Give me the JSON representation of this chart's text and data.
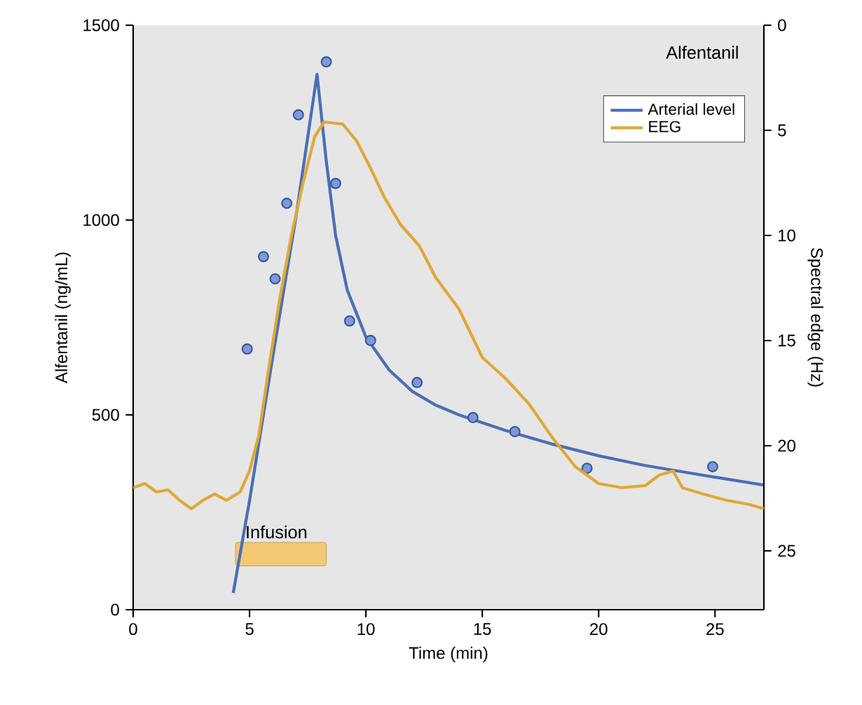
{
  "chart_data": {
    "type": "line",
    "title": "Alfentanil",
    "xlabel": "Time (min)",
    "ylabel": "Alfentanil (ng/mL)",
    "y2label": "Spectral edge (Hz)",
    "xlim": [
      0,
      27.1
    ],
    "xticks": [
      0,
      5,
      10,
      15,
      20,
      25
    ],
    "ylim": [
      0,
      1500
    ],
    "yticks": [
      0,
      500,
      1000,
      1500
    ],
    "y2lim": [
      27.8,
      0
    ],
    "y2ticks": [
      0,
      5,
      10,
      15,
      20,
      25
    ],
    "legend": "top right",
    "series": [
      {
        "name": "Arterial level",
        "type": "line",
        "color": "#4a6fb5",
        "x": [
          4.3,
          5,
          6,
          7,
          7.9,
          8.3,
          8.7,
          9.2,
          10,
          11,
          12,
          13,
          14,
          16,
          18,
          20,
          22,
          25,
          27.1
        ],
        "values": [
          43,
          280,
          650,
          1010,
          1374,
          1150,
          960,
          820,
          700,
          615,
          560,
          525,
          500,
          460,
          425,
          395,
          370,
          340,
          320
        ]
      },
      {
        "type": "scatter",
        "color": "#7b98e0",
        "x": [
          4.9,
          5.6,
          6.1,
          6.6,
          7.1,
          8.3,
          8.7,
          9.3,
          10.2,
          12.2,
          14.6,
          16.4,
          19.5,
          24.9
        ],
        "values": [
          669,
          906,
          849,
          1043,
          1270,
          1406,
          1094,
          741,
          691,
          583,
          493,
          457,
          363,
          367
        ]
      },
      {
        "name": "EEG",
        "type": "line",
        "axis": "y2",
        "color": "#e0a838",
        "x": [
          0,
          0.5,
          1,
          1.5,
          2,
          2.5,
          3,
          3.5,
          4,
          4.6,
          5,
          5.4,
          5.8,
          6.3,
          6.8,
          7.3,
          7.8,
          8.2,
          9,
          9.6,
          10.2,
          10.8,
          11.5,
          12.3,
          13,
          14,
          15,
          16,
          17,
          18,
          19,
          20,
          21,
          22,
          22.6,
          23.2,
          23.6,
          24.5,
          25.5,
          26.5,
          27.1
        ],
        "values": [
          22.0,
          21.8,
          22.2,
          22.1,
          22.6,
          23.0,
          22.6,
          22.3,
          22.6,
          22.2,
          21.2,
          19.5,
          16.5,
          13,
          10,
          7.5,
          5.3,
          4.6,
          4.7,
          5.5,
          6.8,
          8.2,
          9.5,
          10.5,
          12,
          13.5,
          15.8,
          16.8,
          18,
          19.6,
          21,
          21.8,
          22.0,
          21.9,
          21.4,
          21.2,
          22.0,
          22.3,
          22.6,
          22.8,
          23.0
        ]
      }
    ],
    "bands": [
      {
        "axis": "x",
        "from": 4.4,
        "to": 8.3,
        "label": "Infusion",
        "color": "#f3c875"
      }
    ]
  }
}
